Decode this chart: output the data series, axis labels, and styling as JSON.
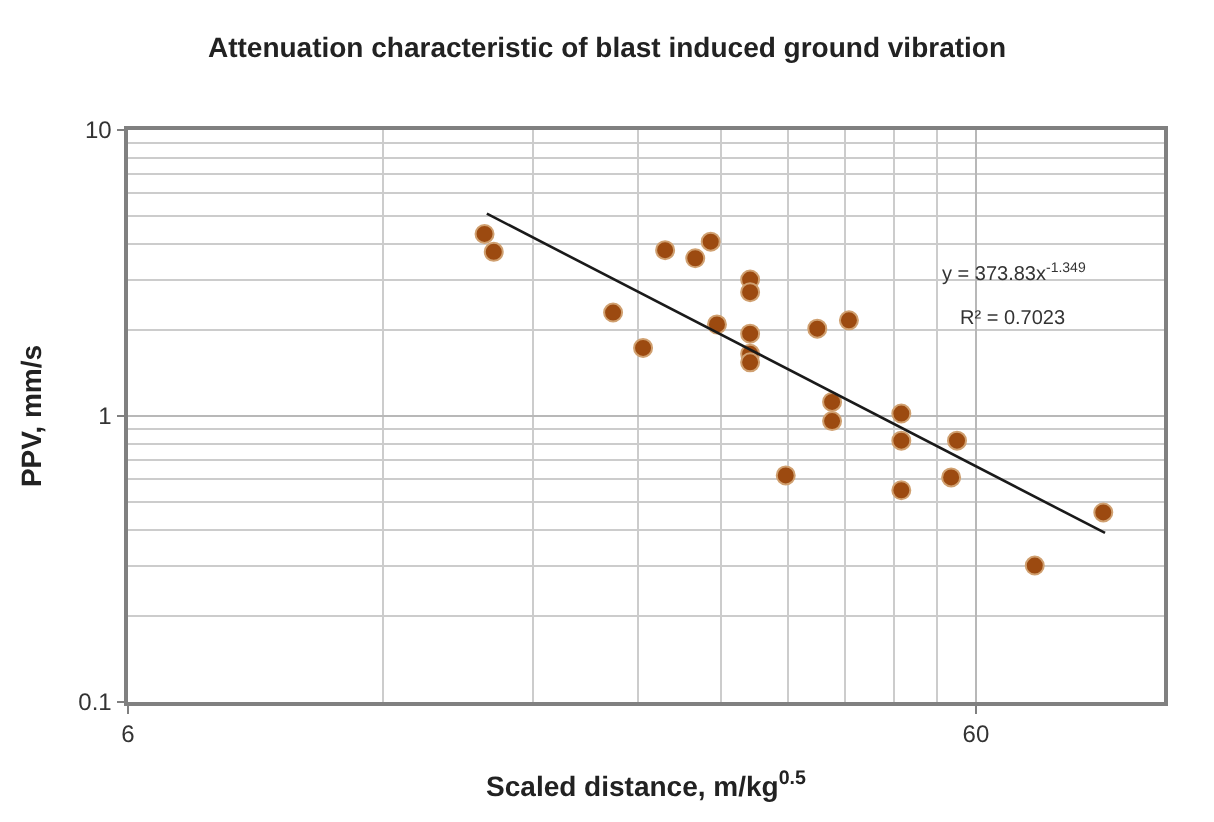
{
  "chart_data": {
    "type": "scatter",
    "title": "Attenuation characteristic of blast induced ground vibration",
    "xlabel": "Scaled distance, m/kg$^{0.5}$",
    "ylabel": "PPV, mm/s",
    "log": "xy",
    "xlim": [
      6,
      100
    ],
    "xticks": [
      6,
      60
    ],
    "ylim": [
      0.1,
      10
    ],
    "yticks": [
      0.1,
      1,
      10
    ],
    "grid": true,
    "marker": "circle",
    "series": [
      {
        "color": "#9c4a10",
        "x": [
          15.8,
          16.2,
          22.4,
          24.3,
          25.8,
          28.0,
          29.2,
          29.7,
          32.5,
          32.5,
          32.5,
          32.5,
          32.5,
          35.8,
          39.0,
          42.5,
          40.6,
          40.6,
          49.0,
          49.0,
          49.0,
          57.0,
          56.1,
          70.4,
          84.8
        ],
        "values": [
          4.33,
          3.75,
          2.3,
          1.73,
          3.8,
          3.56,
          4.07,
          2.09,
          3.0,
          2.71,
          1.94,
          1.65,
          1.54,
          0.62,
          2.02,
          2.16,
          1.12,
          0.96,
          1.02,
          0.82,
          0.55,
          0.82,
          0.61,
          0.3,
          0.46
        ]
      },
      {
        "type": "line",
        "color": "#1a1a1a",
        "marker": "none",
        "x": [
          15.9,
          85.2
        ],
        "values": [
          5.1,
          0.39
        ]
      }
    ],
    "annotations": [
      "y = 373.83x$^{-1.349}$",
      "R² = 0.7023"
    ]
  }
}
